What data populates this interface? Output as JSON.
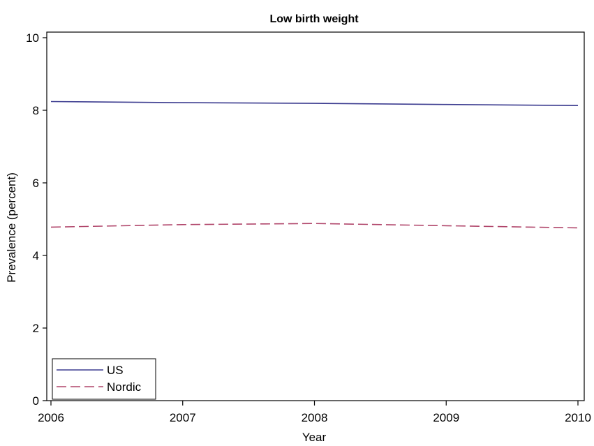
{
  "chart_data": {
    "type": "line",
    "title": "Low birth weight",
    "xlabel": "Year",
    "ylabel": "Prevalence (percent)",
    "x": [
      2006,
      2007,
      2008,
      2009,
      2010
    ],
    "xticks": [
      "2006",
      "2007",
      "2008",
      "2009",
      "2010"
    ],
    "yticks": [
      "0",
      "2",
      "4",
      "6",
      "8",
      "10"
    ],
    "xlim": [
      2006,
      2010
    ],
    "ylim": [
      0,
      10
    ],
    "grid": false,
    "legend_position": "bottom-left",
    "series": [
      {
        "name": "US",
        "values": [
          8.24,
          8.21,
          8.19,
          8.16,
          8.13
        ],
        "color": "#3b3b8f",
        "style": "solid"
      },
      {
        "name": "Nordic",
        "values": [
          4.78,
          4.85,
          4.88,
          4.82,
          4.76
        ],
        "color": "#b0456a",
        "style": "dashed"
      }
    ]
  }
}
